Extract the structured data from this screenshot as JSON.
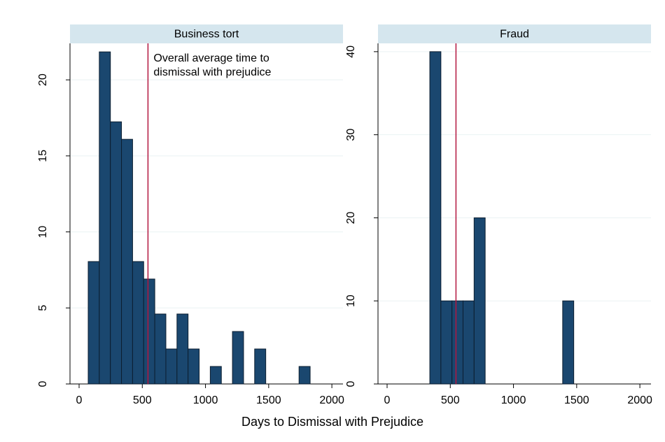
{
  "chart_data": [
    {
      "type": "histogram",
      "title": "Business tort",
      "bins": [
        72,
        159.8,
        247.6,
        335.4,
        423.2,
        511,
        598.8,
        686.6,
        774.4,
        862.2,
        950,
        1037.8,
        1125.6,
        1213.4,
        1301.2,
        1389,
        1476.8,
        1564.6,
        1652.4,
        1740.2,
        1828
      ],
      "values": [
        8.05,
        21.84,
        17.24,
        16.09,
        8.05,
        6.9,
        4.6,
        2.3,
        4.6,
        2.3,
        0,
        1.15,
        0,
        3.45,
        0,
        2.3,
        0,
        0,
        0,
        1.15
      ],
      "color": "#1a476f",
      "mean_line": 545,
      "mean_line_color": "#b3163f",
      "annotation": [
        "Overall average time to",
        "dismissal with prejudice"
      ],
      "xlabel": "Days to Dismissal with Prejudice",
      "xlim": [
        -72,
        2088
      ],
      "xticks": [
        0,
        500,
        1000,
        1500,
        2000
      ],
      "ylim": [
        0,
        22.4
      ],
      "yticks": [
        0,
        5,
        10,
        15,
        20
      ],
      "grid": true
    },
    {
      "type": "histogram",
      "title": "Fraud",
      "bins": [
        338,
        425.6,
        513.2,
        600.8,
        688.4,
        776,
        863.6,
        951.2,
        1038.8,
        1126.4,
        1214,
        1301.6,
        1389.2,
        1476.8
      ],
      "values": [
        40,
        10,
        10,
        10,
        20,
        0,
        0,
        0,
        0,
        0,
        0,
        0,
        10
      ],
      "color": "#1a476f",
      "mean_line": 545,
      "mean_line_color": "#b3163f",
      "xlim": [
        -72,
        2088
      ],
      "xticks": [
        0,
        500,
        1000,
        1500,
        2000
      ],
      "ylim": [
        0,
        41
      ],
      "yticks": [
        0,
        10,
        20,
        30,
        40
      ],
      "grid": true
    }
  ]
}
